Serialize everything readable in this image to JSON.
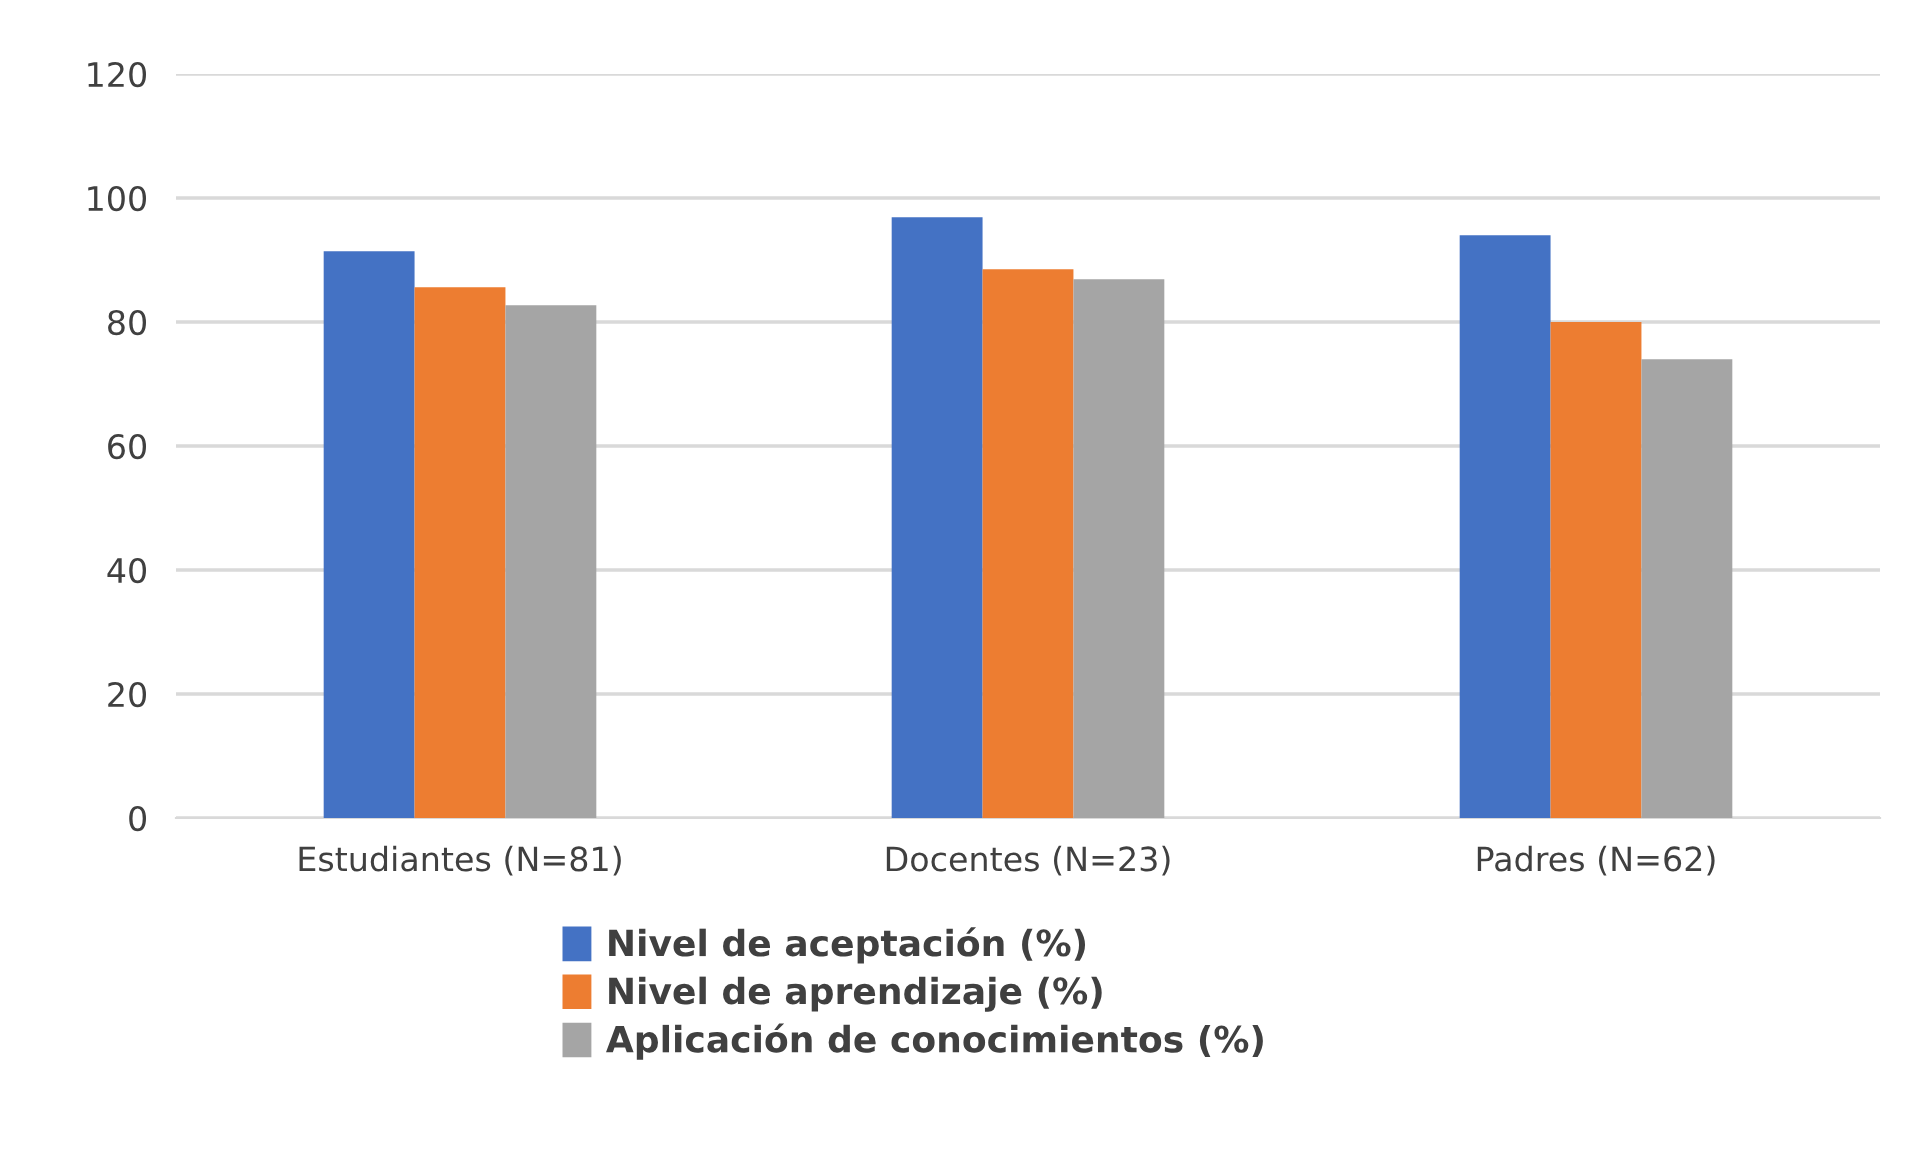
{
  "chart_data": {
    "type": "bar",
    "categories": [
      "Estudiantes (N=81)",
      "Docentes (N=23)",
      "Padres (N=62)"
    ],
    "series": [
      {
        "name": "Nivel de aceptación (%)",
        "color": "#4472c4",
        "values": [
          91.4,
          96.9,
          94
        ]
      },
      {
        "name": "Nivel de aprendizaje (%)",
        "color": "#ed7d31",
        "values": [
          85.6,
          88.5,
          80
        ]
      },
      {
        "name": "Aplicación de conocimientos (%)",
        "color": "#a5a5a5",
        "values": [
          82.7,
          86.9,
          74
        ]
      }
    ],
    "ylim": [
      0,
      120
    ],
    "yticks": [
      0,
      20,
      40,
      60,
      80,
      100,
      120
    ],
    "grid": "y",
    "legend": "bottom"
  }
}
